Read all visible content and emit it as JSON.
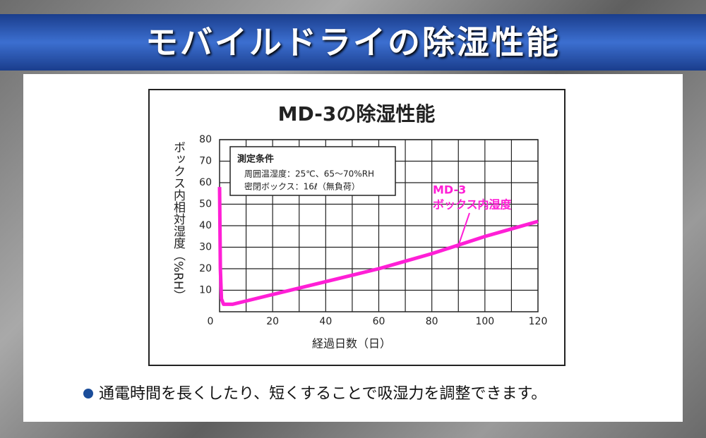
{
  "header": {
    "title": "モバイルドライの除湿性能"
  },
  "chart_data": {
    "type": "line",
    "title": "MD-3の除湿性能",
    "x_label": "経過日数（日）",
    "y_label": "ボックス内相対湿度（%RH）",
    "x": [
      0,
      0.3,
      0.7,
      1.5,
      5,
      10,
      20,
      30,
      40,
      50,
      60,
      70,
      80,
      90,
      100,
      110,
      120
    ],
    "series": [
      {
        "name": "MD-3",
        "color": "#ff1fd6",
        "values": [
          58,
          20,
          6,
          3.5,
          3.5,
          5,
          8,
          11,
          14,
          17,
          20,
          23.5,
          27,
          31,
          35,
          38.5,
          42
        ]
      }
    ],
    "annotation": "ボックス内湿度",
    "xlim": [
      0,
      120
    ],
    "xticks": [
      0,
      20,
      40,
      60,
      80,
      100,
      120
    ],
    "xgrid": [
      10,
      20,
      30,
      40,
      50,
      60,
      70,
      80,
      90,
      100,
      110
    ],
    "ylim": [
      0,
      80
    ],
    "yticks": [
      10,
      20,
      30,
      40,
      50,
      60,
      70,
      80
    ],
    "grid": true,
    "conditions": {
      "title": "測定条件",
      "lines": [
        "周囲温湿度：25℃、65～70%RH",
        "密閉ボックス：16ℓ（無負荷）"
      ]
    }
  },
  "note": "通電時間を長くしたり、短くすることで吸湿力を調整できます。"
}
